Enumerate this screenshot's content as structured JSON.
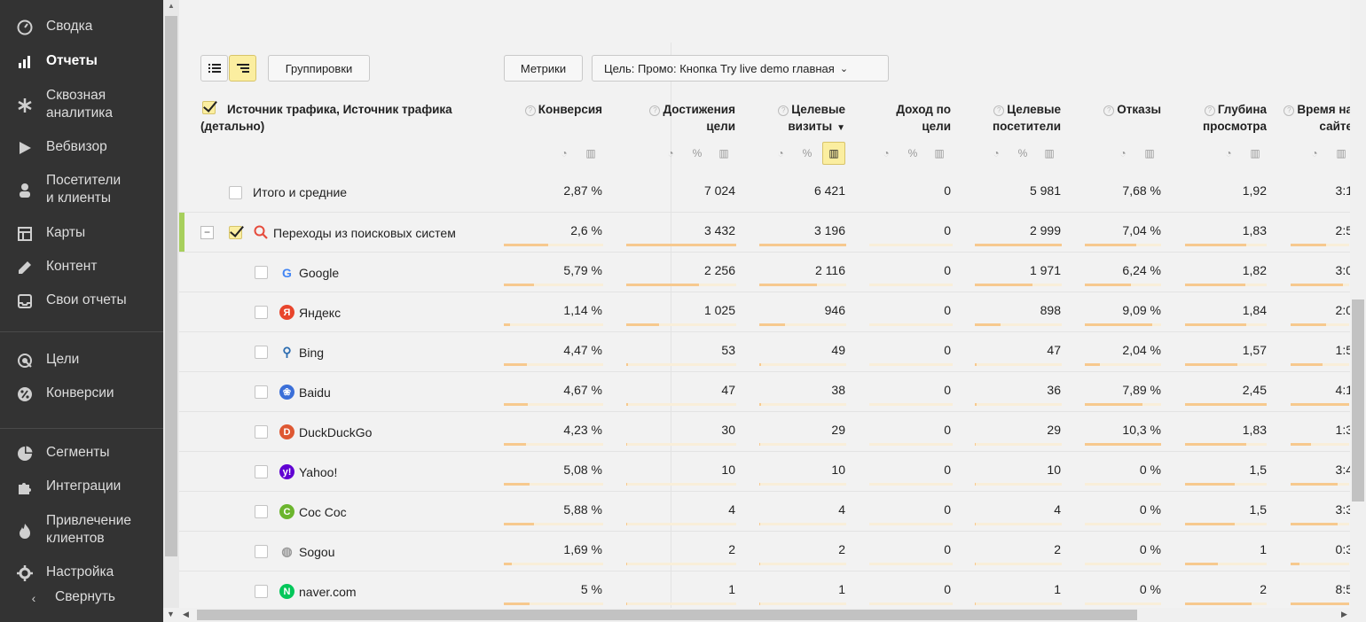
{
  "sidebar": {
    "items": [
      {
        "label": "Сводка",
        "icon": "gauge-icon",
        "active": false
      },
      {
        "label": "Отчеты",
        "icon": "bar-chart-icon",
        "active": true
      },
      {
        "label": "Сквозная\nаналитика",
        "icon": "asterisk-icon",
        "active": false
      },
      {
        "label": "Вебвизор",
        "icon": "play-icon",
        "active": false
      },
      {
        "label": "Посетители\nи клиенты",
        "icon": "person-icon",
        "active": false
      },
      {
        "label": "Карты",
        "icon": "map-icon",
        "active": false
      },
      {
        "label": "Контент",
        "icon": "pencil-icon",
        "active": false
      },
      {
        "label": "Свои отчеты",
        "icon": "inbox-icon",
        "active": false
      },
      {
        "label": "Цели",
        "icon": "target-icon",
        "active": false
      },
      {
        "label": "Конверсии",
        "icon": "percent-icon",
        "active": false
      },
      {
        "label": "Сегменты",
        "icon": "pie-icon",
        "active": false
      },
      {
        "label": "Интеграции",
        "icon": "puzzle-icon",
        "active": false
      },
      {
        "label": "Привлечение\nклиентов",
        "icon": "flame-icon",
        "active": false
      },
      {
        "label": "Настройка",
        "icon": "gear-icon",
        "active": false
      }
    ],
    "collapse_label": "Свернуть"
  },
  "toolbar": {
    "groupings_label": "Группировки",
    "metrics_label": "Метрики",
    "goal_label": "Цель: Промо: Кнопка Try live demo главная"
  },
  "table": {
    "dimension_header": "Источник трафика, Источник трафика (детально)",
    "columns": [
      {
        "label": "Конверсия",
        "help": true,
        "sort": ""
      },
      {
        "label": "Достижения цели",
        "help": true,
        "sort": ""
      },
      {
        "label": "Целевые визиты",
        "help": true,
        "sort": "▼"
      },
      {
        "label": "Доход по цели",
        "help": false,
        "sort": ""
      },
      {
        "label": "Целевые посетители",
        "help": true,
        "sort": ""
      },
      {
        "label": "Отказы",
        "help": true,
        "sort": ""
      },
      {
        "label": "Глубина просмотра",
        "help": true,
        "sort": ""
      },
      {
        "label": "Время на сайте",
        "help": true,
        "sort": ""
      }
    ],
    "totals": {
      "label": "Итого и средние",
      "values": [
        "2,87 %",
        "7 024",
        "6 421",
        "0",
        "5 981",
        "7,68 %",
        "1,92",
        "3:1"
      ]
    },
    "group": {
      "label": "Переходы из поисковых систем",
      "values": [
        "2,6 %",
        "3 432",
        "3 196",
        "0",
        "2 999",
        "7,04 %",
        "1,83",
        "2:5"
      ],
      "bars": [
        0.45,
        1.0,
        1.0,
        0,
        1.0,
        0.68,
        0.75,
        0.6
      ]
    },
    "rows": [
      {
        "label": "Google",
        "icon": "google-icon",
        "icon_color": "#4285f4",
        "glyph": "G",
        "values": [
          "5,79 %",
          "2 256",
          "2 116",
          "0",
          "1 971",
          "6,24 %",
          "1,82",
          "3:0"
        ],
        "bars": [
          0.3,
          0.66,
          0.66,
          0,
          0.66,
          0.6,
          0.74,
          0.9
        ]
      },
      {
        "label": "Яндекс",
        "icon": "yandex-icon",
        "icon_color": "#e8452c",
        "glyph": "Я",
        "values": [
          "1,14 %",
          "1 025",
          "946",
          "0",
          "898",
          "9,09 %",
          "1,84",
          "2:0"
        ],
        "bars": [
          0.06,
          0.3,
          0.3,
          0,
          0.3,
          0.88,
          0.75,
          0.6
        ]
      },
      {
        "label": "Bing",
        "icon": "bing-icon",
        "icon_color": "#2b6cb0",
        "glyph": "⚲",
        "values": [
          "4,47 %",
          "53",
          "49",
          "0",
          "47",
          "2,04 %",
          "1,57",
          "1:5"
        ],
        "bars": [
          0.23,
          0.02,
          0.02,
          0,
          0.02,
          0.2,
          0.64,
          0.55
        ]
      },
      {
        "label": "Baidu",
        "icon": "baidu-icon",
        "icon_color": "#3b6fd8",
        "glyph": "❀",
        "values": [
          "4,67 %",
          "47",
          "38",
          "0",
          "36",
          "7,89 %",
          "2,45",
          "4:1"
        ],
        "bars": [
          0.24,
          0.02,
          0.02,
          0,
          0.02,
          0.76,
          1.0,
          1.0
        ]
      },
      {
        "label": "DuckDuckGo",
        "icon": "duckduckgo-icon",
        "icon_color": "#de5833",
        "glyph": "D",
        "values": [
          "4,23 %",
          "30",
          "29",
          "0",
          "29",
          "10,3 %",
          "1,83",
          "1:3"
        ],
        "bars": [
          0.22,
          0.01,
          0.01,
          0,
          0.01,
          1.0,
          0.75,
          0.35
        ]
      },
      {
        "label": "Yahoo!",
        "icon": "yahoo-icon",
        "icon_color": "#6001d2",
        "glyph": "y!",
        "values": [
          "5,08 %",
          "10",
          "10",
          "0",
          "10",
          "0 %",
          "1,5",
          "3:4"
        ],
        "bars": [
          0.26,
          0.005,
          0.005,
          0,
          0.005,
          0,
          0.61,
          0.8
        ]
      },
      {
        "label": "Coc Coc",
        "icon": "coccoc-icon",
        "icon_color": "#6bb52d",
        "glyph": "C",
        "values": [
          "5,88 %",
          "4",
          "4",
          "0",
          "4",
          "0 %",
          "1,5",
          "3:3"
        ],
        "bars": [
          0.3,
          0.003,
          0.003,
          0,
          0.003,
          0,
          0.61,
          0.8
        ]
      },
      {
        "label": "Sogou",
        "icon": "globe-icon",
        "icon_color": "#999999",
        "glyph": "◍",
        "values": [
          "1,69 %",
          "2",
          "2",
          "0",
          "2",
          "0 %",
          "1",
          "0:3"
        ],
        "bars": [
          0.08,
          0.002,
          0.002,
          0,
          0.002,
          0,
          0.4,
          0.15
        ]
      },
      {
        "label": "naver.com",
        "icon": "naver-icon",
        "icon_color": "#03c75a",
        "glyph": "N",
        "values": [
          "5 %",
          "1",
          "1",
          "0",
          "1",
          "0 %",
          "2",
          "8:5"
        ],
        "bars": [
          0.26,
          0.001,
          0.001,
          0,
          0.001,
          0,
          0.82,
          1.0
        ]
      }
    ]
  }
}
